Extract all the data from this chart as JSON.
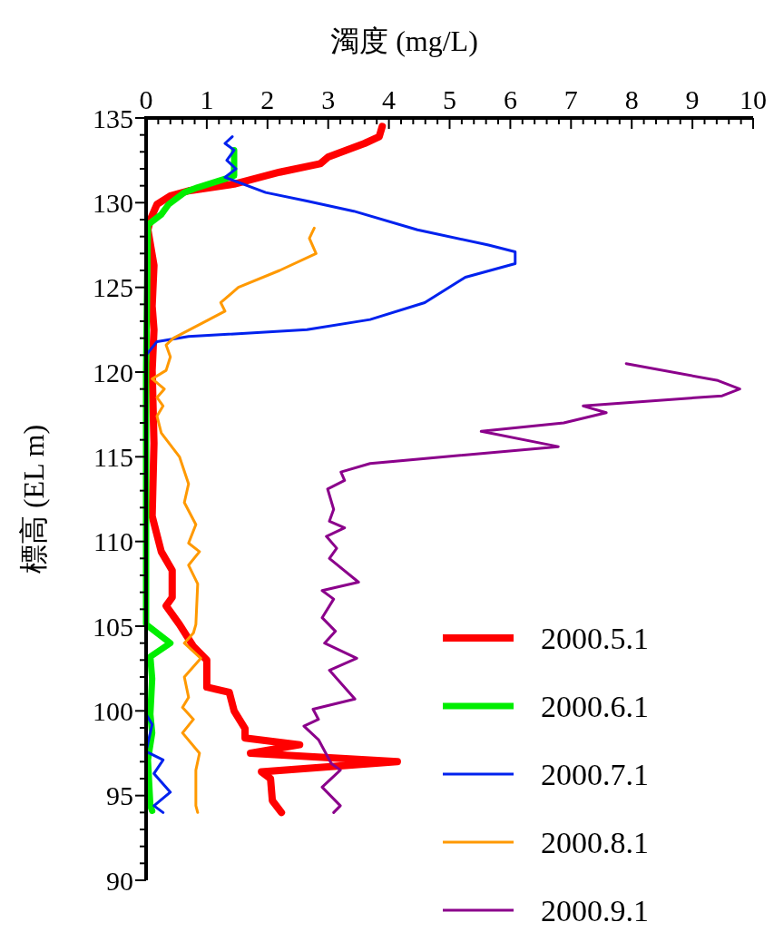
{
  "chart_data": {
    "type": "line",
    "xlabel": "濁度 (mg/L)",
    "ylabel": "標高 (EL m)",
    "xlim": [
      0,
      10
    ],
    "ylim": [
      90,
      135
    ],
    "xticks": [
      0,
      {
        "value": 0.2,
        "label": null
      },
      {
        "value": 0.4,
        "label": null
      },
      {
        "value": 0.6,
        "label": null
      },
      {
        "value": 0.8,
        "label": null
      },
      1,
      {
        "value": 1.2,
        "label": null
      },
      {
        "value": 1.4,
        "label": null
      },
      {
        "value": 1.6,
        "label": null
      },
      {
        "value": 1.8,
        "label": null
      },
      2,
      {
        "value": 2.2,
        "label": null
      },
      {
        "value": 2.4,
        "label": null
      },
      {
        "value": 2.6,
        "label": null
      },
      {
        "value": 2.8,
        "label": null
      },
      3,
      {
        "value": 3.2,
        "label": null
      },
      {
        "value": 3.4,
        "label": null
      },
      {
        "value": 3.6,
        "label": null
      },
      {
        "value": 3.8,
        "label": null
      },
      4,
      {
        "value": 4.2,
        "label": null
      },
      {
        "value": 4.4,
        "label": null
      },
      {
        "value": 4.6,
        "label": null
      },
      {
        "value": 4.8,
        "label": null
      },
      5,
      {
        "value": 5.2,
        "label": null
      },
      {
        "value": 5.4,
        "label": null
      },
      {
        "value": 5.6,
        "label": null
      },
      {
        "value": 5.8,
        "label": null
      },
      6,
      {
        "value": 6.2,
        "label": null
      },
      {
        "value": 6.4,
        "label": null
      },
      {
        "value": 6.6,
        "label": null
      },
      {
        "value": 6.8,
        "label": null
      },
      7,
      {
        "value": 7.2,
        "label": null
      },
      {
        "value": 7.4,
        "label": null
      },
      {
        "value": 7.6,
        "label": null
      },
      {
        "value": 7.8,
        "label": null
      },
      8,
      {
        "value": 8.2,
        "label": null
      },
      {
        "value": 8.4,
        "label": null
      },
      {
        "value": 8.6,
        "label": null
      },
      {
        "value": 8.8,
        "label": null
      },
      9,
      {
        "value": 9.2,
        "label": null
      },
      {
        "value": 9.4,
        "label": null
      },
      {
        "value": 9.6,
        "label": null
      },
      {
        "value": 9.8,
        "label": null
      },
      10
    ],
    "yticks": [
      90,
      {
        "value": 91,
        "label": null
      },
      {
        "value": 92,
        "label": null
      },
      {
        "value": 93,
        "label": null
      },
      {
        "value": 94,
        "label": null
      },
      95,
      {
        "value": 96,
        "label": null
      },
      {
        "value": 97,
        "label": null
      },
      {
        "value": 98,
        "label": null
      },
      {
        "value": 99,
        "label": null
      },
      100,
      {
        "value": 101,
        "label": null
      },
      {
        "value": 102,
        "label": null
      },
      {
        "value": 103,
        "label": null
      },
      {
        "value": 104,
        "label": null
      },
      105,
      {
        "value": 106,
        "label": null
      },
      {
        "value": 107,
        "label": null
      },
      {
        "value": 108,
        "label": null
      },
      {
        "value": 109,
        "label": null
      },
      110,
      {
        "value": 111,
        "label": null
      },
      {
        "value": 112,
        "label": null
      },
      {
        "value": 113,
        "label": null
      },
      {
        "value": 114,
        "label": null
      },
      115,
      {
        "value": 116,
        "label": null
      },
      {
        "value": 117,
        "label": null
      },
      {
        "value": 118,
        "label": null
      },
      {
        "value": 119,
        "label": null
      },
      120,
      {
        "value": 121,
        "label": null
      },
      {
        "value": 122,
        "label": null
      },
      {
        "value": 123,
        "label": null
      },
      {
        "value": 124,
        "label": null
      },
      125,
      {
        "value": 126,
        "label": null
      },
      {
        "value": 127,
        "label": null
      },
      {
        "value": 128,
        "label": null
      },
      {
        "value": 129,
        "label": null
      },
      130,
      {
        "value": 131,
        "label": null
      },
      {
        "value": 132,
        "label": null
      },
      {
        "value": 133,
        "label": null
      },
      {
        "value": 134,
        "label": null
      },
      135
    ],
    "grid": false,
    "legend": "bottom right",
    "line_style": "solid",
    "series": [
      {
        "name": "2000.5.1",
        "color": "#ff0000",
        "x": [
          3.89,
          3.84,
          3.6,
          3.0,
          2.87,
          2.2,
          1.45,
          0.7,
          0.4,
          0.18,
          0.07,
          0.03,
          0.13,
          0.1,
          0.13,
          0.1,
          0.13,
          0.1,
          0.25,
          0.43,
          0.43,
          0.33,
          0.55,
          0.78,
          1.0,
          1.0,
          1.37,
          1.45,
          1.63,
          1.63,
          2.53,
          1.72,
          4.14,
          1.9,
          2.05,
          2.08,
          2.23
        ],
        "values": [
          134.5,
          133.9,
          133.5,
          132.7,
          132.3,
          131.8,
          131.1,
          130.7,
          130.4,
          129.9,
          129,
          128.4,
          126.3,
          123.9,
          122.5,
          120.1,
          115.8,
          111.5,
          109.4,
          108.3,
          106.7,
          106.2,
          105.1,
          103.8,
          103,
          101.4,
          101.1,
          100,
          98.95,
          98.4,
          98.0,
          97.5,
          97.0,
          96.4,
          96.0,
          94.7,
          94.0
        ]
      },
      {
        "name": "2000.6.1",
        "color": "#00ee00",
        "x": [
          1.45,
          1.45,
          1.3,
          0.85,
          0.63,
          0.37,
          0.25,
          0.03,
          0,
          0,
          0.4,
          0.07,
          0.1,
          0.07,
          0.1,
          0.03,
          0.07,
          0.1
        ],
        "values": [
          133.1,
          131.6,
          131.4,
          130.9,
          130.6,
          129.9,
          129.3,
          128.7,
          120,
          105.1,
          104.0,
          103.2,
          101.9,
          99.8,
          98.7,
          97.1,
          94.4,
          94.1
        ]
      },
      {
        "name": "2000.7.1",
        "color": "#0022ee",
        "x": [
          1.42,
          1.3,
          1.45,
          1.33,
          1.48,
          1.3,
          1.97,
          2.65,
          3.42,
          4.47,
          5.64,
          6.08,
          6.08,
          5.26,
          4.59,
          3.69,
          2.65,
          0.7,
          0.18,
          0,
          0,
          0.1,
          0,
          0.28,
          0.13,
          0.4,
          0.13,
          0.28
        ],
        "values": [
          133.9,
          133.5,
          133.1,
          132.5,
          132.0,
          131.5,
          130.6,
          130.1,
          129.5,
          128.4,
          127.5,
          127.1,
          126.4,
          125.6,
          124.1,
          123.1,
          122.5,
          122.1,
          121.8,
          121.0,
          99.8,
          99.2,
          97.6,
          97.1,
          96.3,
          95.2,
          94.4,
          94.0
        ]
      },
      {
        "name": "2000.8.1",
        "color": "#ff9900",
        "x": [
          2.77,
          2.69,
          2.8,
          2.2,
          1.52,
          1.23,
          1.3,
          0.93,
          0.45,
          0.33,
          0.4,
          0.33,
          0.1,
          0.3,
          0.18,
          0.28,
          0.18,
          0.25,
          0.55,
          0.7,
          0.63,
          0.82,
          0.7,
          0.88,
          0.7,
          0.85,
          0.82,
          0.78,
          0.63,
          0.9,
          0.63,
          0.7,
          0.6,
          0.78,
          0.6,
          0.88,
          0.82,
          0.82,
          0.85
        ],
        "values": [
          128.5,
          127.9,
          127.0,
          126.0,
          125.0,
          124.1,
          123.6,
          122.9,
          122.0,
          121.6,
          120.9,
          120.1,
          119.6,
          119.0,
          118.5,
          118.0,
          117.4,
          116.4,
          115.0,
          113.4,
          112.3,
          111.0,
          109.9,
          109.4,
          108.6,
          107.5,
          105.1,
          104.6,
          104.0,
          103.1,
          102.0,
          100.8,
          100.2,
          99.5,
          98.7,
          97.5,
          96.5,
          94.4,
          94.0
        ]
      },
      {
        "name": "2000.9.1",
        "color": "#8b008b",
        "x": [
          7.91,
          9.42,
          9.78,
          9.49,
          7.2,
          7.58,
          6.88,
          5.52,
          6.79,
          3.69,
          3.21,
          3.27,
          2.99,
          3.09,
          3.02,
          3.27,
          2.97,
          3.14,
          3.02,
          3.5,
          2.9,
          3.09,
          2.9,
          3.12,
          2.94,
          3.47,
          3.02,
          3.44,
          2.75,
          2.84,
          2.6,
          2.84,
          3.05,
          3.2,
          2.9,
          3.2,
          3.09
        ],
        "values": [
          120.5,
          119.5,
          119.0,
          118.6,
          118.0,
          117.6,
          117.0,
          116.5,
          115.6,
          114.6,
          114.1,
          113.6,
          113.1,
          111.9,
          111.2,
          110.8,
          110.3,
          109.6,
          109.0,
          107.6,
          107.1,
          106.6,
          105.5,
          104.7,
          104.0,
          103.1,
          102.4,
          100.7,
          100.1,
          99.5,
          99.1,
          98.3,
          96.9,
          96.5,
          95.5,
          94.4,
          94.0
        ]
      }
    ]
  }
}
